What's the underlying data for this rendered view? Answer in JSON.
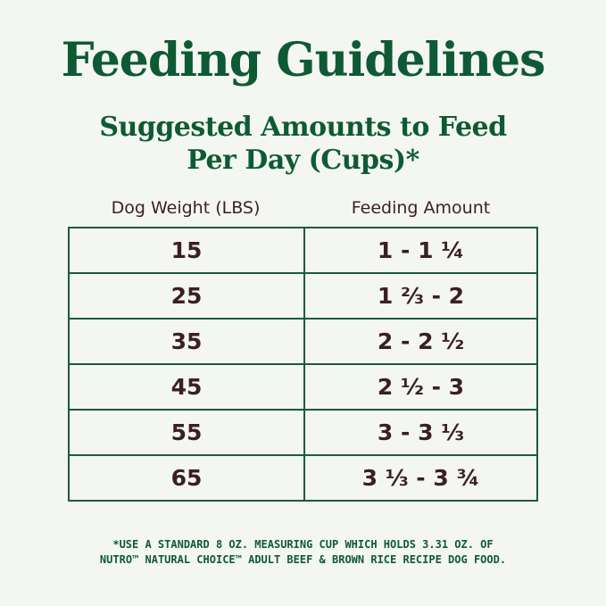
{
  "title": "Feeding Guidelines",
  "subtitle_line1": "Suggested Amounts to Feed",
  "subtitle_line2": "Per Day (Cups)*",
  "table": {
    "headers": [
      "Dog Weight (LBS)",
      "Feeding Amount"
    ],
    "rows": [
      [
        "15",
        "1 - 1 ¼"
      ],
      [
        "25",
        "1 ⅔ - 2"
      ],
      [
        "35",
        "2 - 2 ½"
      ],
      [
        "45",
        "2 ½ - 3"
      ],
      [
        "55",
        "3 - 3 ⅓"
      ],
      [
        "65",
        "3 ⅓ - 3 ¾"
      ]
    ]
  },
  "footnote_line1": "*USE A STANDARD 8 OZ. MEASURING CUP WHICH HOLDS 3.31 OZ. OF",
  "footnote_line2": "NUTRO™ NATURAL CHOICE™ ADULT BEEF & BROWN RICE RECIPE DOG FOOD.",
  "colors": {
    "background": "#f4f7f1",
    "green": "#0e5a34",
    "text": "#3b1f22"
  }
}
